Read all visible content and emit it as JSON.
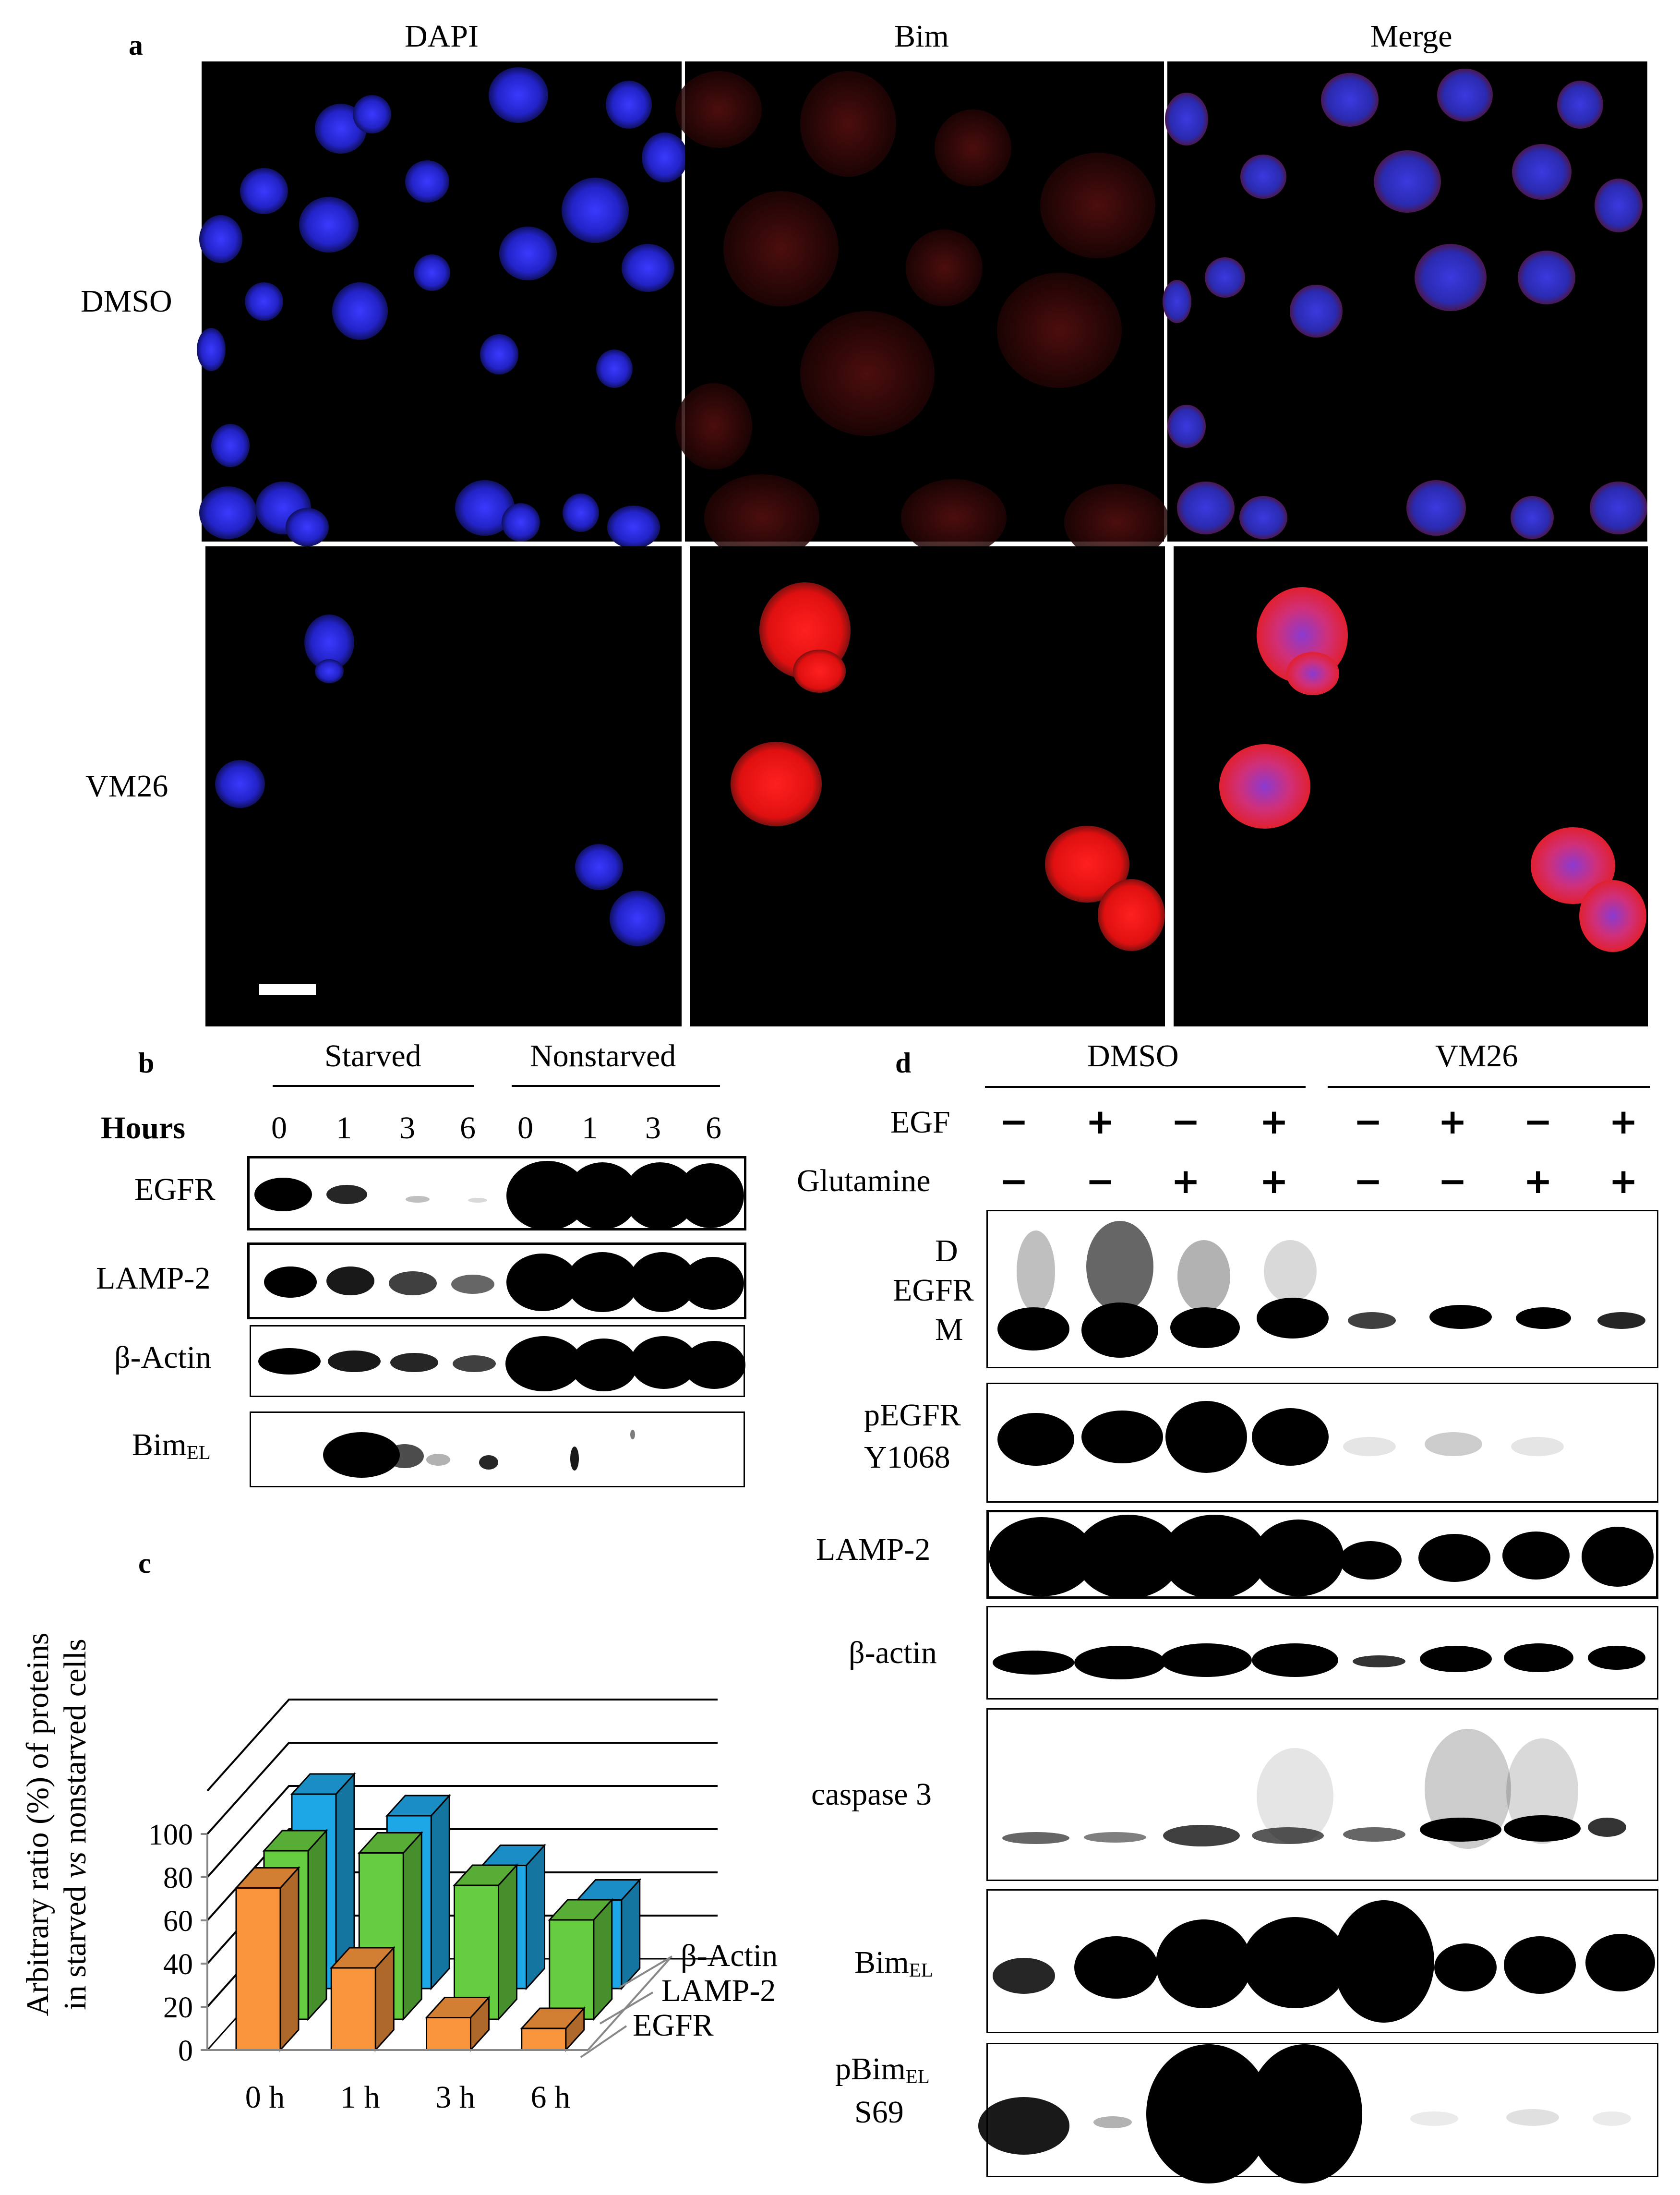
{
  "panel_labels": {
    "a": "a",
    "b": "b",
    "c": "c",
    "d": "d"
  },
  "panel_a": {
    "columns": [
      "DAPI",
      "Bim",
      "Merge"
    ],
    "rows": [
      "DMSO",
      "VM26"
    ]
  },
  "panel_b": {
    "groups": [
      "Starved",
      "Nonstarved"
    ],
    "hours_label": "Hours",
    "hours": [
      "0",
      "1",
      "3",
      "6",
      "0",
      "1",
      "3",
      "6"
    ],
    "proteins": {
      "egfr": "EGFR",
      "lamp2": "LAMP-2",
      "actin": "β-Actin",
      "bim_main": "Bim",
      "bim_sub": "EL"
    }
  },
  "panel_c": {
    "ylabel_line1": "Arbitrary ratio (%) of proteins",
    "ylabel_line2_a": "in starved ",
    "ylabel_line2_vs": "vs",
    "ylabel_line2_b": " nonstarved cells",
    "ytick_labels": [
      "0",
      "20",
      "40",
      "60",
      "80",
      "100"
    ],
    "series_labels": [
      "β-Actin",
      "LAMP-2",
      "EGFR"
    ]
  },
  "chart_data": {
    "type": "bar",
    "categories": [
      "0 h",
      "1 h",
      "3 h",
      "6 h"
    ],
    "series": [
      {
        "name": "EGFR",
        "values": [
          75,
          38,
          15,
          10
        ]
      },
      {
        "name": "LAMP-2",
        "values": [
          78,
          77,
          62,
          46
        ]
      },
      {
        "name": "β-Actin",
        "values": [
          90,
          80,
          57,
          41
        ]
      }
    ],
    "ylim": [
      0,
      100
    ],
    "ylabel": "Arbitrary ratio (%) of proteins in starved vs nonstarved cells",
    "grid": true,
    "colors": {
      "EGFR": "#f7943c",
      "LAMP-2": "#66cc40",
      "β-Actin": "#1ea7e6"
    }
  },
  "panel_d": {
    "groups": [
      "DMSO",
      "VM26"
    ],
    "egf_label": "EGF",
    "glutamine_label": "Glutamine",
    "egf_signs": [
      "−",
      "+",
      "−",
      "+",
      "−",
      "+",
      "−",
      "+"
    ],
    "glutamine_signs": [
      "−",
      "−",
      "+",
      "+",
      "−",
      "−",
      "+",
      "+"
    ],
    "egfr_top": "D",
    "egfr_mid": "EGFR",
    "egfr_bot": "M",
    "pegfr_1": "pEGFR",
    "pegfr_2": "Y1068",
    "lamp2": "LAMP-2",
    "actin": "β-actin",
    "caspase": "caspase 3",
    "bim_main": "Bim",
    "bim_sub": "EL",
    "pbim_main": "pBim",
    "pbim_sub": "EL",
    "pbim_site": "S69"
  }
}
